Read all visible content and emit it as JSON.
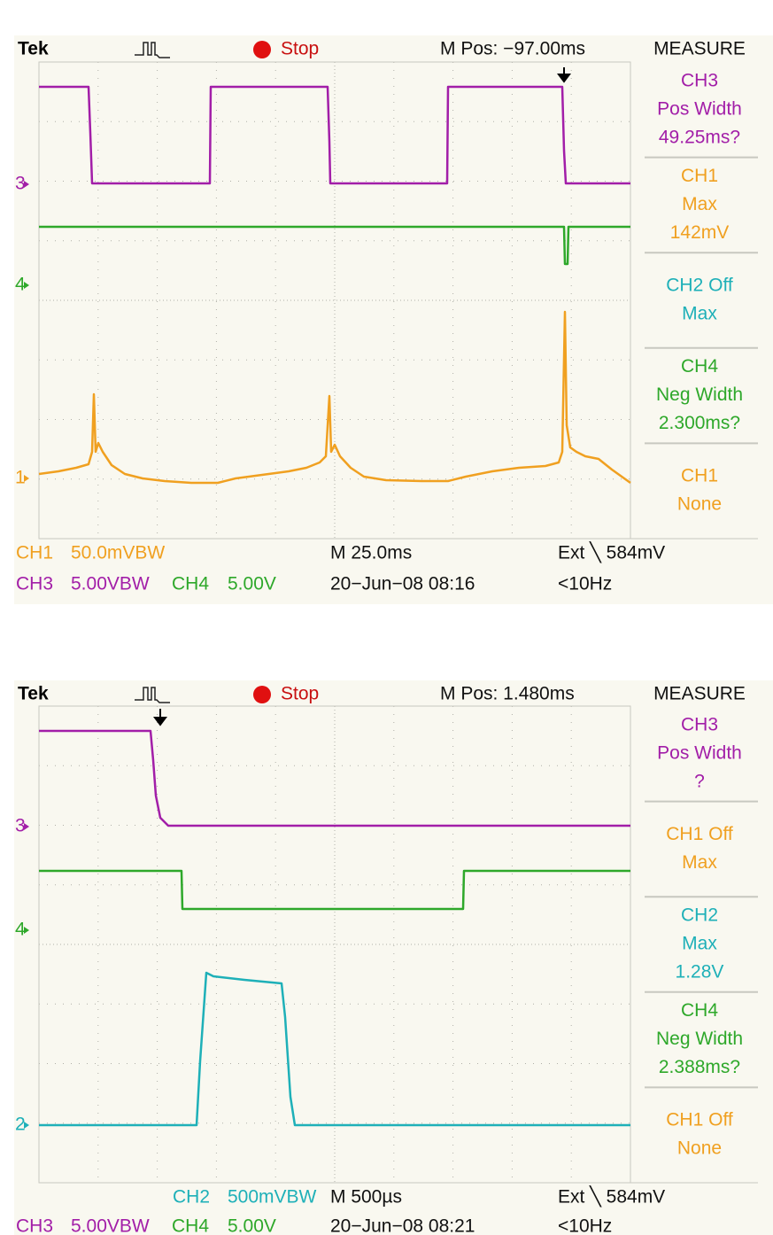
{
  "screens": [
    {
      "header": {
        "brand": "Tek",
        "status": "Stop",
        "position": "M Pos: −97.00ms",
        "measure_title": "MEASURE"
      },
      "markers": [
        {
          "label": "3",
          "color": "#a21ea8"
        },
        {
          "label": "4",
          "color": "#2ea82a"
        },
        {
          "label": "1",
          "color": "#f0a020"
        }
      ],
      "measure": [
        {
          "lines": [
            "CH3",
            "Pos Width",
            "49.25ms?"
          ],
          "color": "#a21ea8"
        },
        {
          "lines": [
            "CH1",
            "Max",
            "142mV"
          ],
          "color": "#f0a020"
        },
        {
          "lines": [
            "CH2 Off",
            "Max"
          ],
          "color": "#1eb0b8"
        },
        {
          "lines": [
            "CH4",
            "Neg Width",
            "2.300ms?"
          ],
          "color": "#2ea82a"
        },
        {
          "lines": [
            "CH1",
            "None"
          ],
          "color": "#f0a020"
        }
      ],
      "footer": [
        {
          "text": "CH1",
          "color": "#f0a020"
        },
        {
          "text": "50.0mVBW",
          "color": "#f0a020"
        },
        {
          "text": "M 25.0ms",
          "color": "#111111"
        },
        {
          "text": "Ext ╲ 584mV",
          "color": "#111111"
        },
        {
          "text": "CH3",
          "color": "#a21ea8"
        },
        {
          "text": "5.00VBW",
          "color": "#a21ea8"
        },
        {
          "text": "CH4",
          "color": "#2ea82a"
        },
        {
          "text": "5.00V",
          "color": "#2ea82a"
        },
        {
          "text": "20−Jun−08 08:16",
          "color": "#111111"
        },
        {
          "text": "<10Hz",
          "color": "#111111"
        }
      ]
    },
    {
      "header": {
        "brand": "Tek",
        "status": "Stop",
        "position": "M Pos: 1.480ms",
        "measure_title": "MEASURE"
      },
      "markers": [
        {
          "label": "3",
          "color": "#a21ea8"
        },
        {
          "label": "4",
          "color": "#2ea82a"
        },
        {
          "label": "2",
          "color": "#1eb0b8"
        }
      ],
      "measure": [
        {
          "lines": [
            "CH3",
            "Pos Width",
            "?"
          ],
          "color": "#a21ea8"
        },
        {
          "lines": [
            "CH1 Off",
            "Max"
          ],
          "color": "#f0a020"
        },
        {
          "lines": [
            "CH2",
            "Max",
            "1.28V"
          ],
          "color": "#1eb0b8"
        },
        {
          "lines": [
            "CH4",
            "Neg Width",
            "2.388ms?"
          ],
          "color": "#2ea82a"
        },
        {
          "lines": [
            "CH1 Off",
            "None"
          ],
          "color": "#f0a020"
        }
      ],
      "footer": [
        {
          "text": "CH2",
          "color": "#1eb0b8"
        },
        {
          "text": "500mVBW",
          "color": "#1eb0b8"
        },
        {
          "text": "M 500µs",
          "color": "#111111"
        },
        {
          "text": "Ext ╲ 584mV",
          "color": "#111111"
        },
        {
          "text": "CH3",
          "color": "#a21ea8"
        },
        {
          "text": "5.00VBW",
          "color": "#a21ea8"
        },
        {
          "text": "CH4",
          "color": "#2ea82a"
        },
        {
          "text": "5.00V",
          "color": "#2ea82a"
        },
        {
          "text": "20−Jun−08 08:21",
          "color": "#111111"
        },
        {
          "text": "<10Hz",
          "color": "#111111"
        }
      ]
    }
  ]
}
